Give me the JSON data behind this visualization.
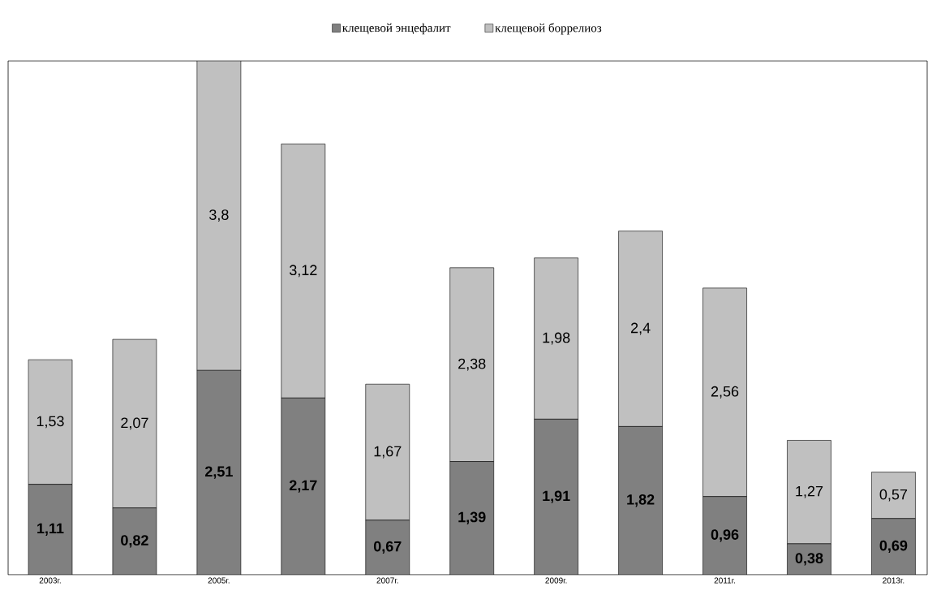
{
  "chart_data": {
    "type": "bar",
    "stacked": true,
    "legend": "top",
    "tick_labels": "x",
    "categories": [
      "2003г.",
      null,
      "2005г.",
      null,
      "2007г.",
      null,
      "2009г.",
      null,
      "2011г.",
      null,
      "2013г."
    ],
    "series": [
      {
        "name": "клещевой энцефалит",
        "color": "#808080",
        "values": [
          1.11,
          0.82,
          2.51,
          2.17,
          0.67,
          1.39,
          1.91,
          1.82,
          0.96,
          0.38,
          0.69
        ],
        "value_labels": [
          "1,11",
          "0,82",
          "2,51",
          "2,17",
          "0,67",
          "1,39",
          "1,91",
          "1,82",
          "0,96",
          "0,38",
          "0,69"
        ]
      },
      {
        "name": "клещевой боррелиоз",
        "color": "#c0c0c0",
        "values": [
          1.53,
          2.07,
          3.8,
          3.12,
          1.67,
          2.38,
          1.98,
          2.4,
          2.56,
          1.27,
          0.57
        ],
        "value_labels": [
          "1,53",
          "2,07",
          "3,8",
          "3,12",
          "1,67",
          "2,38",
          "1,98",
          "2,4",
          "2,56",
          "1,27",
          "0,57"
        ]
      }
    ]
  }
}
